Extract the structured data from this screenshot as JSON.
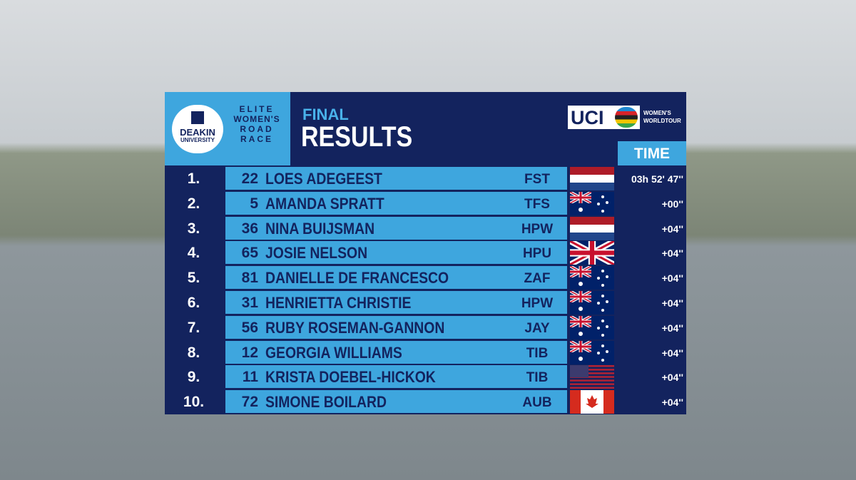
{
  "logo": {
    "name": "DEAKIN",
    "sub": "UNIVERSITY"
  },
  "event": {
    "line1": "ELITE",
    "line2": "WOMEN'S",
    "line3": "ROAD",
    "line4": "RACE"
  },
  "header": {
    "overline": "FINAL",
    "title": "RESULTS",
    "time_heading": "TIME"
  },
  "sponsor": {
    "name": "UCI",
    "line1": "WOMEN'S",
    "line2": "WORLDTOUR"
  },
  "rows": [
    {
      "rank": "1.",
      "bib": "22",
      "name": "LOES ADEGEEST",
      "team": "FST",
      "time": "03h 52' 47''"
    },
    {
      "rank": "2.",
      "bib": "5",
      "name": "AMANDA SPRATT",
      "team": "TFS",
      "time": "+00''"
    },
    {
      "rank": "3.",
      "bib": "36",
      "name": "NINA BUIJSMAN",
      "team": "HPW",
      "time": "+04''"
    },
    {
      "rank": "4.",
      "bib": "65",
      "name": "JOSIE NELSON",
      "team": "HPU",
      "time": "+04''"
    },
    {
      "rank": "5.",
      "bib": "81",
      "name": "DANIELLE DE FRANCESCO",
      "team": "ZAF",
      "time": "+04''"
    },
    {
      "rank": "6.",
      "bib": "31",
      "name": "HENRIETTA CHRISTIE",
      "team": "HPW",
      "time": "+04''"
    },
    {
      "rank": "7.",
      "bib": "56",
      "name": "RUBY ROSEMAN-GANNON",
      "team": "JAY",
      "time": "+04''"
    },
    {
      "rank": "8.",
      "bib": "12",
      "name": "GEORGIA WILLIAMS",
      "team": "TIB",
      "time": "+04''"
    },
    {
      "rank": "9.",
      "bib": "11",
      "name": "KRISTA DOEBEL-HICKOK",
      "team": "TIB",
      "time": "+04''"
    },
    {
      "rank": "10.",
      "bib": "72",
      "name": "SIMONE BOILARD",
      "team": "AUB",
      "time": "+04''"
    }
  ]
}
